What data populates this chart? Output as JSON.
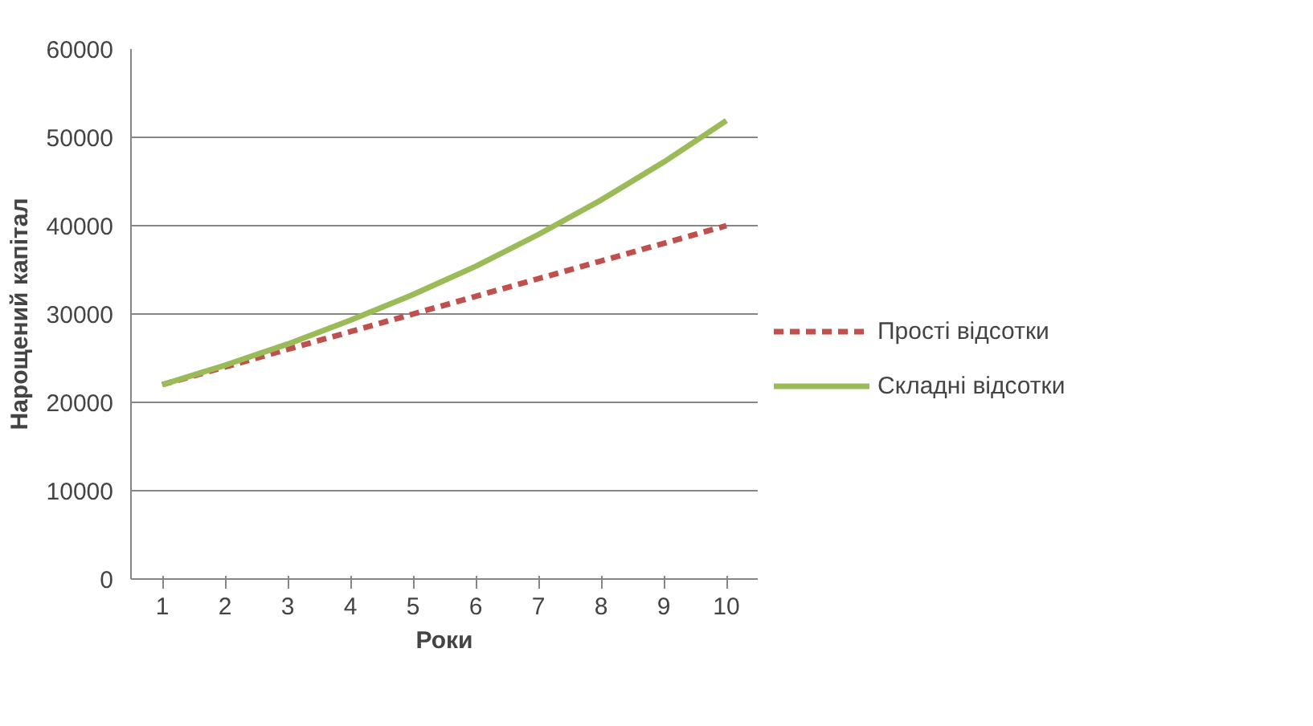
{
  "chart_data": {
    "type": "line",
    "xlabel": "Роки",
    "ylabel": "Нарощений капітал",
    "categories": [
      "1",
      "2",
      "3",
      "4",
      "5",
      "6",
      "7",
      "8",
      "9",
      "10"
    ],
    "series": [
      {
        "name": "Прості відсотки",
        "color": "#c0504d",
        "line_style": "dashed",
        "values": [
          22000,
          24000,
          26000,
          28000,
          30000,
          32000,
          34000,
          36000,
          38000,
          40000
        ]
      },
      {
        "name": "Складні відсотки",
        "color": "#9bbb59",
        "line_style": "solid",
        "values": [
          22000,
          24200,
          26600,
          29300,
          32200,
          35400,
          39000,
          42900,
          47200,
          51900
        ]
      }
    ],
    "ylim": [
      0,
      60000
    ],
    "yticks": [
      0,
      10000,
      20000,
      30000,
      40000,
      50000,
      60000
    ],
    "grid": "y",
    "legend": "right"
  }
}
